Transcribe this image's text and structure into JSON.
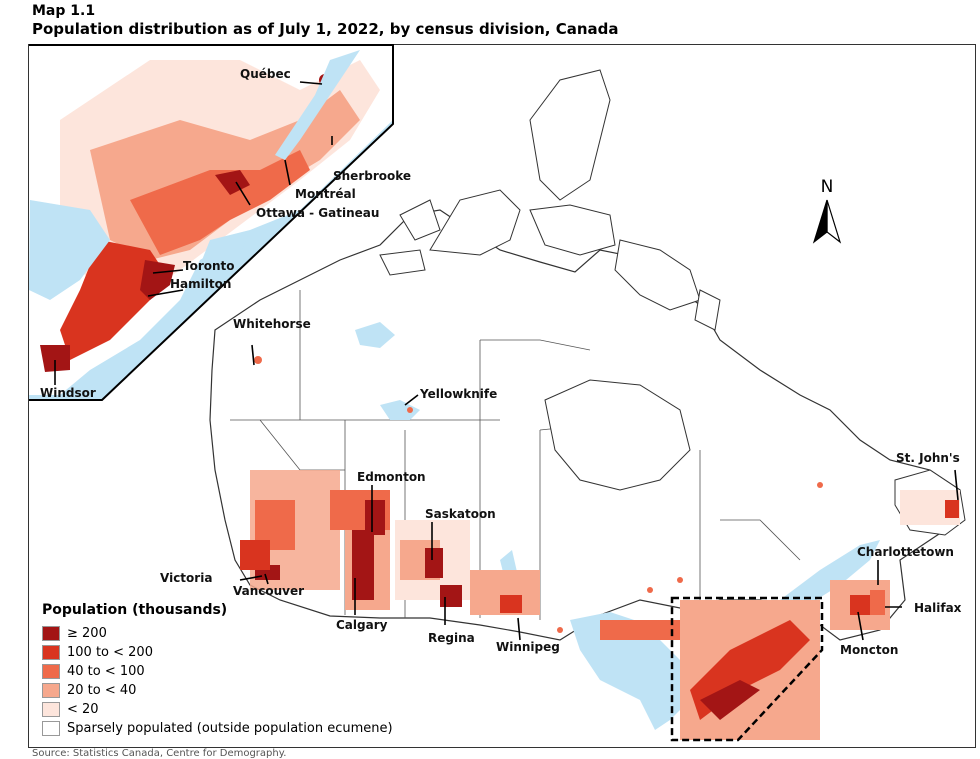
{
  "header": {
    "map_label": "Map 1.1",
    "title": "Population distribution as of July 1, 2022, by census division, Canada"
  },
  "compass": {
    "label": "N"
  },
  "legend": {
    "title": "Population (thousands)",
    "items": [
      {
        "label": "≥ 200",
        "color": "#a31515"
      },
      {
        "label": "100 to < 200",
        "color": "#d9341f"
      },
      {
        "label": "40 to < 100",
        "color": "#ef6a4a"
      },
      {
        "label": "20 to < 40",
        "color": "#f6a88d"
      },
      {
        "label": "< 20",
        "color": "#fde5dc"
      },
      {
        "label": "Sparsely populated (outside population ecumene)",
        "color": "#ffffff"
      }
    ]
  },
  "cities": {
    "quebec": "Québec",
    "sherbrooke": "Sherbrooke",
    "montreal": "Montréal",
    "ottawa": "Ottawa - Gatineau",
    "toronto": "Toronto",
    "hamilton": "Hamilton",
    "windsor": "Windsor",
    "whitehorse": "Whitehorse",
    "yellowknife": "Yellowknife",
    "edmonton": "Edmonton",
    "saskatoon": "Saskatoon",
    "victoria": "Victoria",
    "vancouver": "Vancouver",
    "calgary": "Calgary",
    "regina": "Regina",
    "winnipeg": "Winnipeg",
    "stjohns": "St. John's",
    "charlottetown": "Charlottetown",
    "halifax": "Halifax",
    "moncton": "Moncton"
  },
  "colors": {
    "water": "#bfe3f5",
    "border": "#555555"
  },
  "footer": "Source: Statistics Canada, Centre for Demography."
}
